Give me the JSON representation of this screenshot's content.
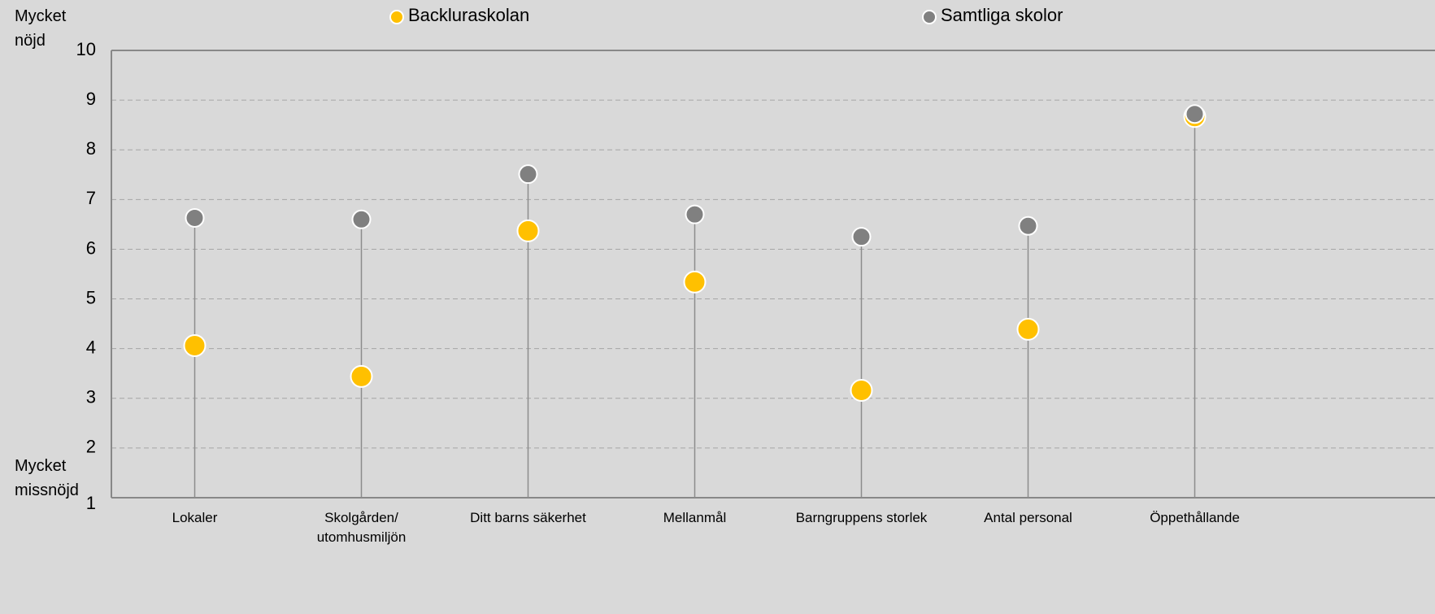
{
  "chart_data": {
    "type": "dot",
    "annotations": [
      "Mycket\nnöjd",
      "Mycket\nmissnöjd"
    ],
    "categories": [
      "Lokaler",
      "Skolgården/\nutomhusmiljön",
      "Ditt barns säkerhet",
      "Mellanmål",
      "Barngruppens storlek",
      "Antal personal",
      "Öppethållande"
    ],
    "series": [
      {
        "name": "Backluraskolan",
        "color": "#ffc000",
        "values": [
          4.06,
          3.44,
          6.37,
          5.34,
          3.16,
          4.39,
          8.67
        ]
      },
      {
        "name": "Samtliga skolor",
        "color": "#808080",
        "values": [
          6.63,
          6.6,
          7.51,
          6.7,
          6.25,
          6.47,
          8.72
        ]
      }
    ],
    "ylim": [
      1,
      10
    ],
    "yticks": [
      1,
      2,
      3,
      4,
      5,
      6,
      7,
      8,
      9,
      10
    ],
    "grid": true
  }
}
